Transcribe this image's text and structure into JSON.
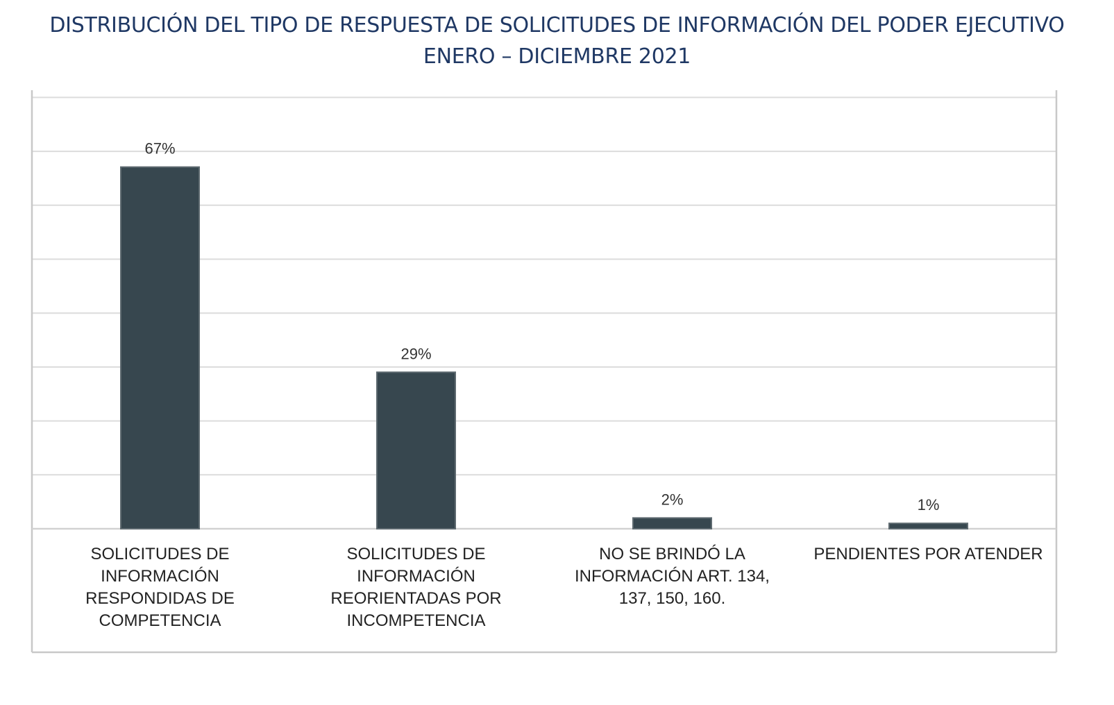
{
  "chart_data": {
    "type": "bar",
    "title": "DISTRIBUCIÓN DEL TIPO DE RESPUESTA DE SOLICITUDES DE INFORMACIÓN DEL PODER EJECUTIVO",
    "subtitle": "ENERO – DICIEMBRE 2021",
    "categories": [
      [
        "SOLICITUDES DE",
        "INFORMACIÓN",
        "RESPONDIDAS DE",
        "COMPETENCIA"
      ],
      [
        "SOLICITUDES DE",
        "INFORMACIÓN",
        "REORIENTADAS POR",
        "INCOMPETENCIA"
      ],
      [
        "NO SE BRINDÓ LA",
        "INFORMACIÓN ART. 134,",
        "137, 150, 160."
      ],
      [
        "PENDIENTES POR ATENDER"
      ]
    ],
    "values": [
      67,
      29,
      2,
      1
    ],
    "data_labels": [
      "67%",
      "29%",
      "2%",
      "1%"
    ],
    "ylim": [
      0,
      80
    ],
    "grid": true,
    "bar_color": "#37474f",
    "title_color": "#1f3864"
  }
}
